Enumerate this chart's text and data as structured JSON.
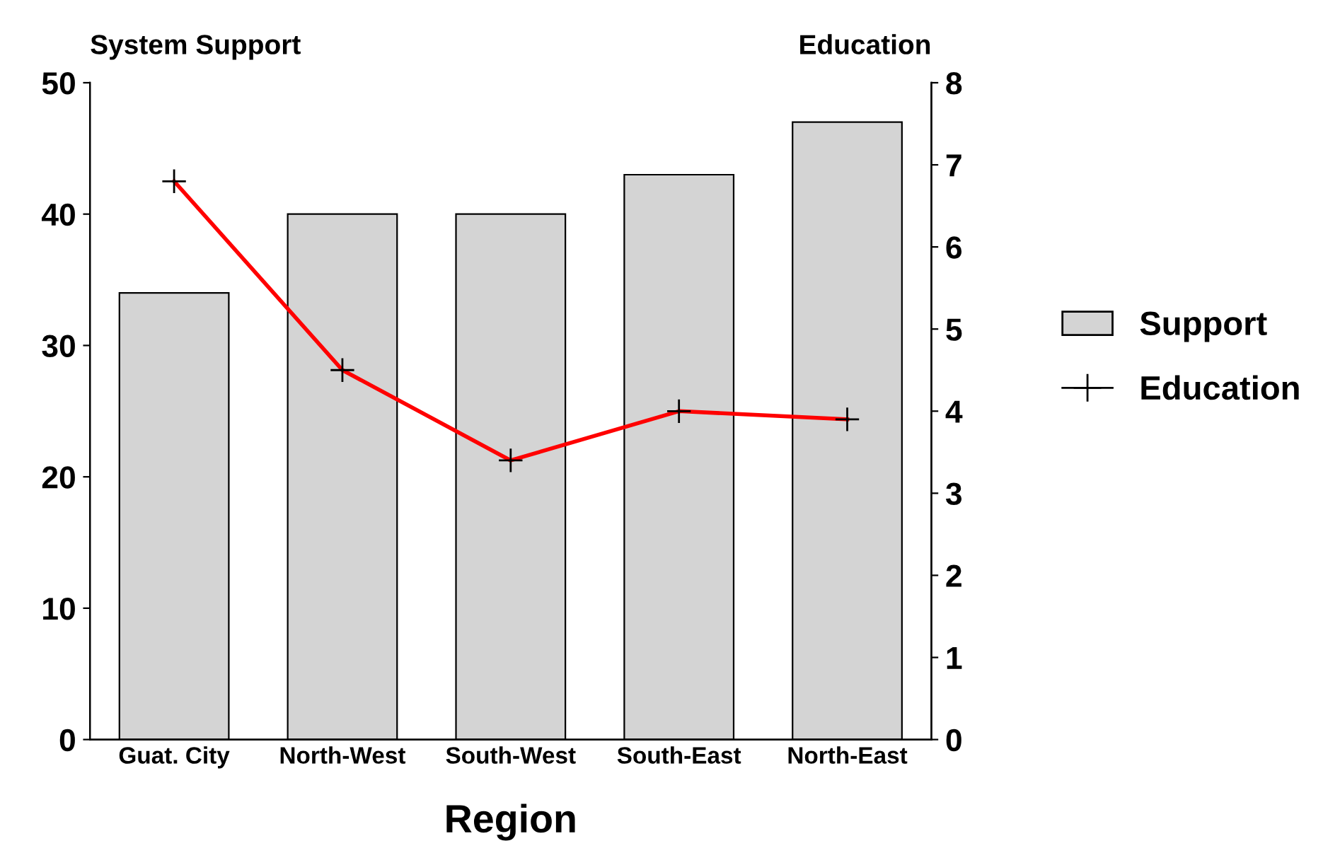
{
  "chart_data": {
    "type": "bar",
    "xlabel": "Region",
    "ylabel": "System Support",
    "y2label": "Education",
    "categories": [
      "Guat. City",
      "North-West",
      "South-West",
      "South-East",
      "North-East"
    ],
    "series": [
      {
        "name": "Support",
        "color": "#d4d4d4",
        "values": [
          34,
          40,
          40,
          43,
          47
        ]
      },
      {
        "name": "Education",
        "type": "line",
        "axis": "y2",
        "color": "#ff0000",
        "marker": "cross",
        "line_style": "solid",
        "values": [
          6.8,
          4.5,
          3.4,
          4.0,
          3.9
        ]
      }
    ],
    "ylim": [
      0,
      50
    ],
    "yticks": [
      0,
      10,
      20,
      30,
      40,
      50
    ],
    "y2lim": [
      0,
      8
    ],
    "y2ticks": [
      0,
      1,
      2,
      3,
      4,
      5,
      6,
      7,
      8
    ],
    "grid": false,
    "legend": "right"
  }
}
